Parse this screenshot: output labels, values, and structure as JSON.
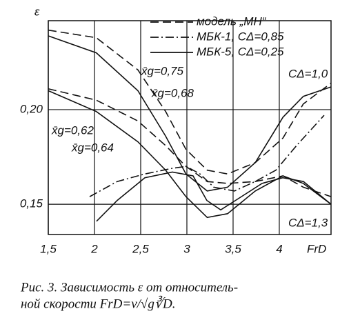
{
  "chart_data": {
    "type": "line",
    "y_label": "ε",
    "x_label": "FrD",
    "xlim": [
      1.5,
      4.56
    ],
    "ylim": [
      0.134,
      0.247
    ],
    "xticks": [
      {
        "value": 1.5,
        "label": "1,5"
      },
      2,
      {
        "value": 2.5,
        "label": "2,5"
      },
      3,
      {
        "value": 3.5,
        "label": "3,5"
      },
      4
    ],
    "yticks": [
      {
        "value": 0.15,
        "label": "0,15"
      },
      {
        "value": 0.2,
        "label": "0,20"
      }
    ],
    "grid": true,
    "color": "#111",
    "legend": [
      {
        "label": "модель „МН“",
        "style": "dashed"
      },
      {
        "label": "МБК-1, CΔ=0,85",
        "style": "dashdot"
      },
      {
        "label": "МБК-5, CΔ=0,25",
        "style": "solid"
      }
    ],
    "series": [
      {
        "style": "dashed",
        "x": [
          1.5,
          2.02,
          2.47,
          2.77,
          2.99,
          3.22,
          3.44,
          3.74,
          4.04,
          4.26,
          4.56
        ],
        "values": [
          0.242,
          0.238,
          0.221,
          0.199,
          0.179,
          0.168,
          0.166,
          0.172,
          0.185,
          0.203,
          0.214
        ]
      },
      {
        "style": "solid",
        "x": [
          1.5,
          2.02,
          2.47,
          2.77,
          2.99,
          3.22,
          3.44,
          3.74,
          4.04,
          4.26,
          4.56
        ],
        "values": [
          0.239,
          0.23,
          0.21,
          0.186,
          0.166,
          0.157,
          0.159,
          0.172,
          0.196,
          0.207,
          0.212
        ]
      },
      {
        "style": "dashed",
        "x": [
          1.5,
          2.02,
          2.47,
          2.77,
          2.99,
          3.22,
          3.44,
          3.74,
          4.04,
          4.26,
          4.56
        ],
        "values": [
          0.211,
          0.205,
          0.194,
          0.181,
          0.17,
          0.162,
          0.161,
          0.162,
          0.165,
          0.159,
          0.154
        ]
      },
      {
        "style": "solid",
        "x": [
          1.5,
          2.02,
          2.47,
          2.77,
          2.99,
          3.22,
          3.44,
          3.74,
          4.04,
          4.26,
          4.56
        ],
        "values": [
          0.21,
          0.199,
          0.183,
          0.168,
          0.154,
          0.143,
          0.145,
          0.157,
          0.165,
          0.161,
          0.15
        ]
      },
      {
        "style": "dashdot",
        "x": [
          1.948,
          2.246,
          2.545,
          2.843,
          2.993,
          3.142,
          3.291,
          3.515,
          3.739,
          3.963,
          4.187,
          4.485
        ],
        "values": [
          0.154,
          0.162,
          0.166,
          0.169,
          0.17,
          0.166,
          0.159,
          0.157,
          0.162,
          0.168,
          0.181,
          0.197
        ]
      },
      {
        "style": "solid",
        "x": [
          2.022,
          2.246,
          2.545,
          2.843,
          3.067,
          3.216,
          3.366,
          3.59,
          3.813,
          4.037,
          4.261,
          4.56
        ],
        "values": [
          0.141,
          0.152,
          0.164,
          0.167,
          0.165,
          0.152,
          0.147,
          0.154,
          0.161,
          0.164,
          0.162,
          0.15
        ]
      }
    ],
    "annotations": [
      "x̄g=0,75",
      "x̄g=0,68",
      "x̄g=0,62",
      "x̄g=0,64",
      "CΔ=1,0",
      "CΔ=1,3"
    ],
    "caption": [
      "Рис. 3. Зависимость ε от относитель-",
      "ной скорости FrD=v/√g∛D."
    ]
  }
}
